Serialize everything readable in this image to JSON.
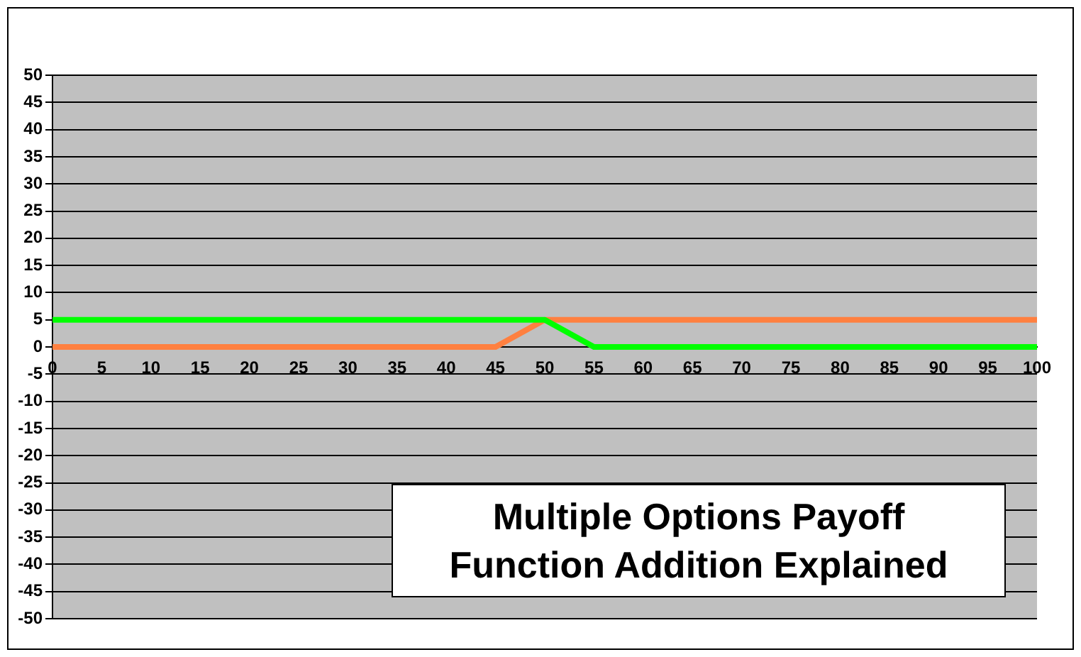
{
  "chart_data": {
    "type": "line",
    "title": "Multiple Options Payoff Function Addition Explained",
    "series": [
      {
        "color": "#00ff00",
        "x": [
          0,
          50,
          55,
          100
        ],
        "values": [
          5,
          5,
          0,
          0
        ]
      },
      {
        "color": "#ff8040",
        "x": [
          0,
          45,
          50,
          100
        ],
        "values": [
          0,
          0,
          5,
          5
        ]
      }
    ],
    "xlim": [
      0,
      100
    ],
    "xticks": [
      0,
      5,
      10,
      15,
      20,
      25,
      30,
      35,
      40,
      45,
      50,
      55,
      60,
      65,
      70,
      75,
      80,
      85,
      90,
      95,
      100
    ],
    "ylim": [
      -50,
      50
    ],
    "yticks": [
      -50,
      -45,
      -40,
      -35,
      -30,
      -25,
      -20,
      -15,
      -10,
      -5,
      0,
      5,
      10,
      15,
      20,
      25,
      30,
      35,
      40,
      45,
      50
    ],
    "grid": "y",
    "legend": false,
    "marker": "none",
    "line_style": "solid"
  }
}
